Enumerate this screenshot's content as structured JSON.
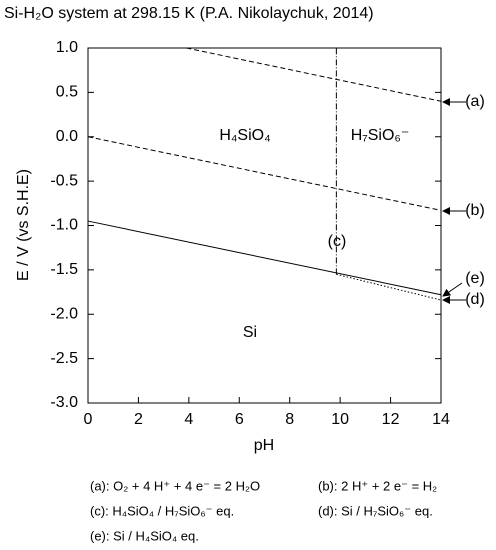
{
  "chart_data": {
    "type": "line",
    "title": "Si-H₂O system at 298.15 K (P.A. Nikolaychuk, 2014)",
    "x_label": "pH",
    "y_label": "E / V (vs S.H.E)",
    "xlim": [
      0,
      14
    ],
    "ylim": [
      -3.0,
      1.0
    ],
    "xticks": [
      0,
      2,
      4,
      6,
      8,
      10,
      12,
      14
    ],
    "yticks": [
      {
        "value": 1.0,
        "label": "1.0"
      },
      0.5,
      {
        "value": 0.0,
        "label": "0.0"
      },
      -0.5,
      {
        "value": -1.0,
        "label": "-1.0"
      },
      -1.5,
      {
        "value": -2.0,
        "label": "-2.0"
      },
      -2.5,
      {
        "value": -3.0,
        "label": "-3.0"
      }
    ],
    "color": "#000000",
    "series": [
      {
        "name": "(a)",
        "style": "dashed",
        "x": [
          3.9,
          14
        ],
        "values": [
          1.0,
          0.4
        ]
      },
      {
        "name": "(b)",
        "style": "dashed",
        "x": [
          0,
          14
        ],
        "values": [
          0.0,
          -0.83
        ]
      },
      {
        "name": "(c)",
        "style": "dashdot",
        "x": [
          9.85,
          9.85
        ],
        "values": [
          -1.55,
          1.0
        ]
      },
      {
        "name": "(d)",
        "style": "dotted",
        "x": [
          9.85,
          14
        ],
        "values": [
          -1.55,
          -1.84
        ]
      },
      {
        "name": "(e)",
        "style": "solid",
        "x": [
          0,
          14
        ],
        "values": [
          -0.95,
          -1.78
        ]
      }
    ],
    "regions": [
      "H₄SiO₄",
      "H₇SiO₆⁻",
      "Si"
    ],
    "notes": [
      "(a): O₂ + 4 H⁺ + 4 e⁻ = 2 H₂O",
      "(b): 2 H⁺ + 2 e⁻ = H₂",
      "(c): H₄SiO₄ / H₇SiO₆⁻ eq.",
      "(d): Si / H₇SiO₆⁻ eq.",
      "(e): Si / H₄SiO₄ eq."
    ]
  }
}
